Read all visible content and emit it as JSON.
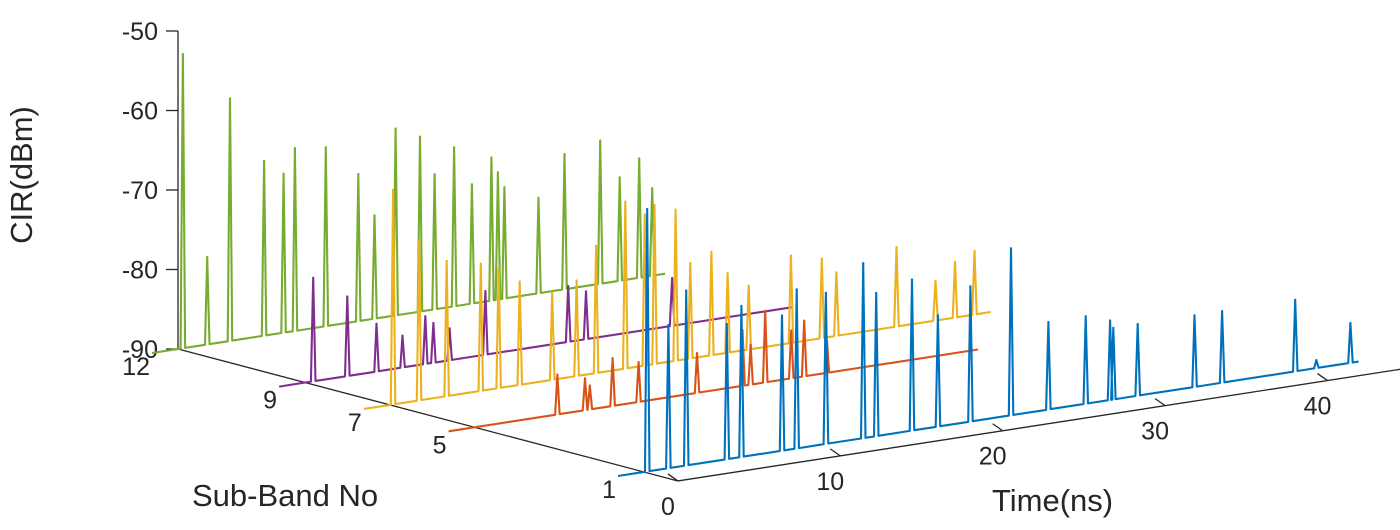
{
  "chart_data": {
    "type": "line",
    "view": "3d-waterfall",
    "xlabel": "Time(ns)",
    "ylabel": "Sub-Band No",
    "zlabel": "CIR(dBm)",
    "x_ticks": [
      "0",
      "10",
      "20",
      "30",
      "40"
    ],
    "y_ticks": [
      "1",
      "5",
      "7",
      "9",
      "12"
    ],
    "z_ticks": [
      "-50",
      "-60",
      "-70",
      "-80",
      "-90"
    ],
    "xlim": [
      0,
      45
    ],
    "zlim": [
      -90,
      -50
    ],
    "grid": false,
    "series": [
      {
        "subband": 12,
        "color": "#77AC30",
        "time_end": 30.0,
        "peaks": [
          [
            0.3,
            -53
          ],
          [
            1.8,
            -79
          ],
          [
            3.2,
            -59.5
          ],
          [
            5.3,
            -68
          ],
          [
            6.5,
            -70
          ],
          [
            7.2,
            -67
          ],
          [
            9.1,
            -67.5
          ],
          [
            11.1,
            -71.5
          ],
          [
            12.1,
            -77
          ],
          [
            13.4,
            -66.5
          ],
          [
            14.9,
            -68
          ],
          [
            15.8,
            -73
          ],
          [
            17.0,
            -70
          ],
          [
            18.1,
            -75
          ],
          [
            19.3,
            -72
          ],
          [
            19.7,
            -74
          ],
          [
            20.1,
            -76
          ],
          [
            22.2,
            -78
          ],
          [
            23.8,
            -73
          ],
          [
            26.0,
            -72
          ],
          [
            27.2,
            -77
          ],
          [
            28.4,
            -75
          ],
          [
            29.2,
            -79
          ]
        ]
      },
      {
        "subband": 9,
        "color": "#7E2F8E",
        "time_end": 30.0,
        "peaks": [
          [
            0.5,
            -77
          ],
          [
            2.6,
            -80
          ],
          [
            4.4,
            -84
          ],
          [
            6.0,
            -86
          ],
          [
            7.4,
            -84
          ],
          [
            7.9,
            -85
          ],
          [
            8.9,
            -86
          ],
          [
            11.1,
            -82
          ],
          [
            16.2,
            -83
          ],
          [
            17.3,
            -84
          ],
          [
            22.6,
            -84
          ]
        ]
      },
      {
        "subband": 7,
        "color": "#EDB120",
        "time_end": 37.0,
        "peaks": [
          [
            0.2,
            -63
          ],
          [
            1.8,
            -70
          ],
          [
            3.5,
            -73
          ],
          [
            5.6,
            -74
          ],
          [
            6.7,
            -75
          ],
          [
            8.0,
            -77
          ],
          [
            10.0,
            -79
          ],
          [
            11.5,
            -78
          ],
          [
            12.7,
            -74
          ],
          [
            14.5,
            -69
          ],
          [
            15.7,
            -71
          ],
          [
            16.3,
            -70
          ],
          [
            17.6,
            -71
          ],
          [
            18.5,
            -78
          ],
          [
            19.8,
            -77
          ],
          [
            20.8,
            -80
          ],
          [
            22.1,
            -82
          ],
          [
            24.7,
            -79
          ],
          [
            26.6,
            -80
          ],
          [
            27.5,
            -82
          ],
          [
            31.2,
            -80
          ],
          [
            33.6,
            -85
          ],
          [
            34.8,
            -83
          ],
          [
            36.0,
            -82
          ]
        ]
      },
      {
        "subband": 5,
        "color": "#D95319",
        "time_end": 31.0,
        "peaks": [
          [
            5.1,
            -85
          ],
          [
            6.8,
            -86
          ],
          [
            7.1,
            -87
          ],
          [
            8.5,
            -84
          ],
          [
            10.1,
            -85
          ],
          [
            13.7,
            -85
          ],
          [
            16.5,
            -83
          ],
          [
            17.0,
            -85
          ],
          [
            17.9,
            -81
          ],
          [
            19.5,
            -84
          ],
          [
            20.3,
            -83
          ],
          [
            21.7,
            -86
          ]
        ]
      },
      {
        "subband": 1,
        "color": "#0072BD",
        "time_end": 44.0,
        "peaks": [
          [
            0.2,
            -57
          ],
          [
            1.5,
            -72
          ],
          [
            2.6,
            -68
          ],
          [
            5.1,
            -73
          ],
          [
            6.0,
            -71
          ],
          [
            8.5,
            -73
          ],
          [
            9.4,
            -70
          ],
          [
            11.2,
            -71
          ],
          [
            13.5,
            -68
          ],
          [
            14.3,
            -72
          ],
          [
            16.5,
            -71
          ],
          [
            18.1,
            -76
          ],
          [
            20.1,
            -73
          ],
          [
            22.6,
            -69
          ],
          [
            24.9,
            -79
          ],
          [
            27.2,
            -79
          ],
          [
            28.7,
            -80
          ],
          [
            28.9,
            -81
          ],
          [
            30.4,
            -81
          ],
          [
            33.9,
            -81
          ],
          [
            35.6,
            -81
          ],
          [
            40.1,
            -81
          ],
          [
            41.4,
            -89
          ],
          [
            43.5,
            -85
          ]
        ]
      }
    ]
  }
}
